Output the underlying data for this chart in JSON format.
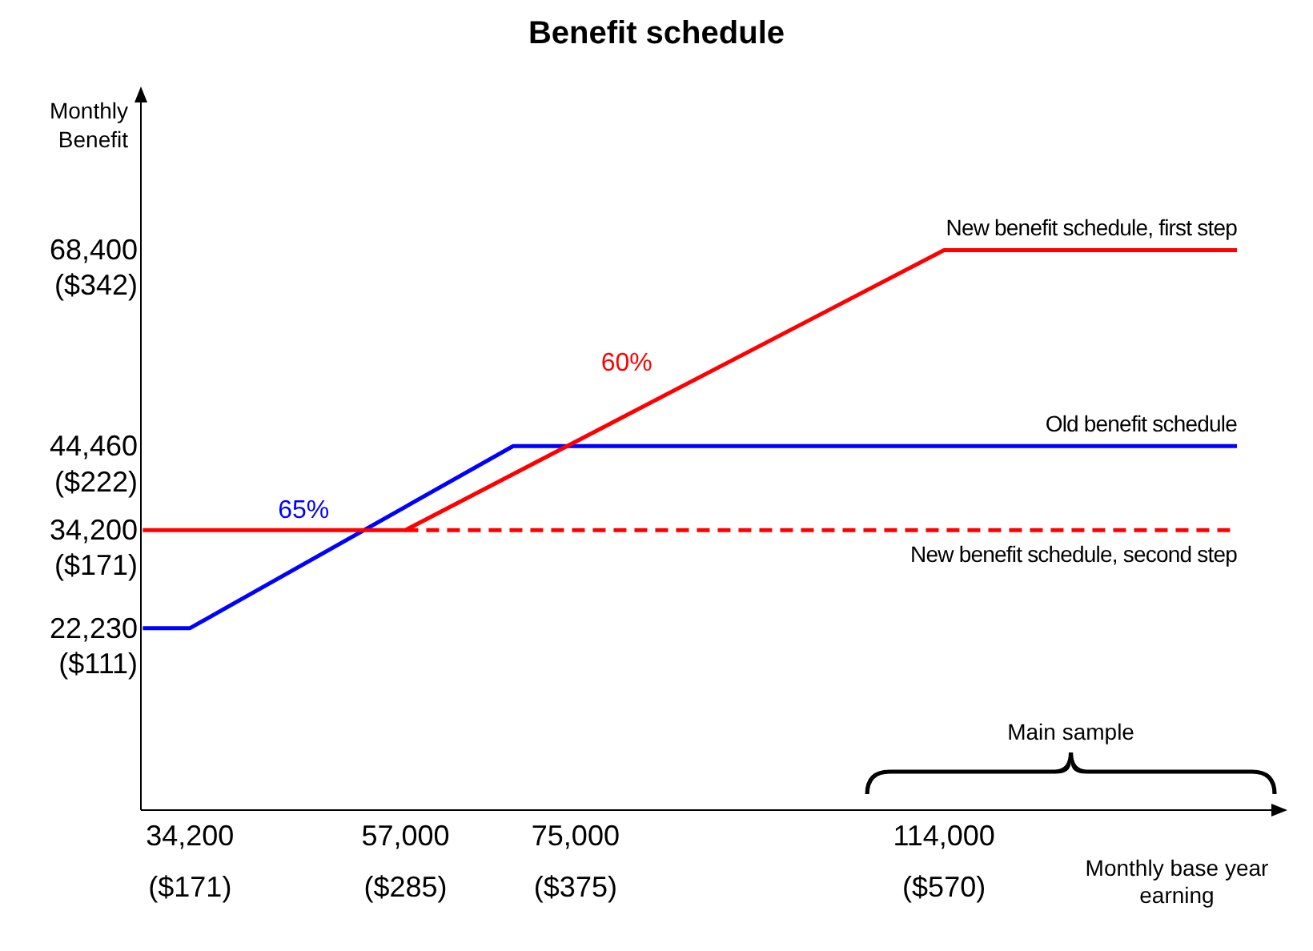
{
  "chart_data": {
    "type": "line",
    "title": "Benefit schedule",
    "xlabel": "Monthly base year earning",
    "ylabel": "Monthly Benefit",
    "xlim": [
      29000,
      150000
    ],
    "ylim": [
      0,
      88000
    ],
    "xticks": [
      {
        "value": 34200,
        "label": "34,200"
      },
      {
        "value": 57000,
        "label": "57,000"
      },
      {
        "value": 75000,
        "label": "75,000"
      },
      {
        "value": 114000,
        "label": "114,000"
      }
    ],
    "x2lim": [
      145,
      750
    ],
    "x2ticks": [
      {
        "value": 171,
        "label": "($171)"
      },
      {
        "value": 285,
        "label": "($285)"
      },
      {
        "value": 375,
        "label": "($375)"
      },
      {
        "value": 570,
        "label": "($570)"
      }
    ],
    "yticks": [
      {
        "value": 22230,
        "label": "22,230"
      },
      {
        "value": 34200,
        "label": "34,200"
      },
      {
        "value": 44460,
        "label": "44,460"
      },
      {
        "value": 68400,
        "label": "68,400"
      }
    ],
    "y2lim": [
      21.5,
      461.5
    ],
    "y2ticks": [
      {
        "value": 111,
        "label": "($111)"
      },
      {
        "value": 171,
        "label": "($171)"
      },
      {
        "value": 222,
        "label": "($222)"
      },
      {
        "value": 342,
        "label": "($342)"
      }
    ],
    "grid": false,
    "legend": false,
    "marker": "none",
    "series": [
      {
        "name": "Old benefit schedule",
        "color": "#0000ff",
        "line_style": "solid",
        "x": [
          29200,
          34200,
          68400,
          145000
        ],
        "values": [
          22230,
          22230,
          44460,
          44460
        ]
      },
      {
        "name": "New benefit schedule, first step",
        "color": "#ff0000",
        "line_style": "solid",
        "x": [
          29200,
          57000,
          114000,
          145000
        ],
        "values": [
          34200,
          34200,
          68400,
          68400
        ]
      },
      {
        "name": "New benefit schedule, second step",
        "color": "#ff0000",
        "line_style": "dashed",
        "x": [
          57000,
          145000
        ],
        "values": [
          34200,
          34200
        ]
      }
    ],
    "annotations": [
      "65%",
      "60%",
      "Main sample"
    ]
  }
}
